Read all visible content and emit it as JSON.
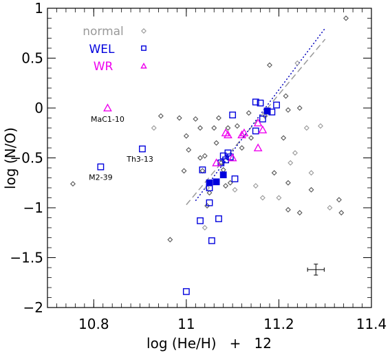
{
  "chart_data": {
    "type": "scatter",
    "title": "",
    "xlabel": "log (He/H)   +   12",
    "ylabel": "log (N/O)",
    "xlim": [
      10.7,
      11.4
    ],
    "ylim": [
      -2,
      1
    ],
    "xticks": [
      10.8,
      11,
      11.2,
      11.4
    ],
    "xtick_labels": [
      "10.8",
      "11",
      "11.2",
      "11.4"
    ],
    "yticks": [
      -2,
      -1.5,
      -1,
      -0.5,
      0,
      0.5,
      1
    ],
    "ytick_labels": [
      "−2",
      "−1.5",
      "−1",
      "−0.5",
      "0",
      "0.5",
      "1"
    ],
    "grid": false,
    "legend_position": "top-left",
    "legend": [
      {
        "label": "normal",
        "color": "#999999",
        "marker": "diamond"
      },
      {
        "label": "WEL",
        "color": "#0000dd",
        "marker": "square"
      },
      {
        "label": "WR",
        "color": "#ee00ee",
        "marker": "triangle"
      }
    ],
    "series": [
      {
        "name": "normal",
        "marker": "diamond",
        "points": [
          {
            "x": 10.755,
            "y": -0.76,
            "c": "#555555"
          },
          {
            "x": 10.945,
            "y": -0.08,
            "c": "#555555"
          },
          {
            "x": 10.93,
            "y": -0.2,
            "c": "#999999"
          },
          {
            "x": 10.985,
            "y": -0.1,
            "c": "#555555"
          },
          {
            "x": 10.995,
            "y": -0.63,
            "c": "#555555"
          },
          {
            "x": 11.0,
            "y": -0.28,
            "c": "#555555"
          },
          {
            "x": 11.005,
            "y": -0.42,
            "c": "#555555"
          },
          {
            "x": 11.02,
            "y": -0.11,
            "c": "#555555"
          },
          {
            "x": 11.03,
            "y": -0.2,
            "c": "#555555"
          },
          {
            "x": 11.03,
            "y": -0.5,
            "c": "#555555"
          },
          {
            "x": 11.035,
            "y": -0.63,
            "c": "#555555"
          },
          {
            "x": 11.04,
            "y": -0.48,
            "c": "#555555"
          },
          {
            "x": 11.045,
            "y": -0.8,
            "c": "#999999"
          },
          {
            "x": 11.05,
            "y": -0.85,
            "c": "#555555"
          },
          {
            "x": 11.06,
            "y": -0.2,
            "c": "#555555"
          },
          {
            "x": 11.065,
            "y": -0.35,
            "c": "#555555"
          },
          {
            "x": 11.07,
            "y": -0.1,
            "c": "#555555"
          },
          {
            "x": 11.075,
            "y": -0.55,
            "c": "#555555"
          },
          {
            "x": 11.08,
            "y": -0.62,
            "c": "#555555"
          },
          {
            "x": 11.085,
            "y": -0.78,
            "c": "#555555"
          },
          {
            "x": 11.09,
            "y": -0.2,
            "c": "#555555"
          },
          {
            "x": 11.095,
            "y": -0.75,
            "c": "#555555"
          },
          {
            "x": 11.105,
            "y": -0.82,
            "c": "#999999"
          },
          {
            "x": 11.11,
            "y": -0.18,
            "c": "#555555"
          },
          {
            "x": 11.12,
            "y": -0.4,
            "c": "#555555"
          },
          {
            "x": 11.135,
            "y": -0.05,
            "c": "#555555"
          },
          {
            "x": 11.14,
            "y": -0.3,
            "c": "#555555"
          },
          {
            "x": 11.15,
            "y": -0.78,
            "c": "#999999"
          },
          {
            "x": 11.165,
            "y": -0.9,
            "c": "#999999"
          },
          {
            "x": 11.17,
            "y": -0.08,
            "c": "#555555"
          },
          {
            "x": 11.18,
            "y": 0.43,
            "c": "#555555"
          },
          {
            "x": 11.19,
            "y": -0.65,
            "c": "#555555"
          },
          {
            "x": 11.2,
            "y": -0.9,
            "c": "#999999"
          },
          {
            "x": 11.21,
            "y": -0.3,
            "c": "#555555"
          },
          {
            "x": 11.215,
            "y": 0.12,
            "c": "#555555"
          },
          {
            "x": 11.22,
            "y": -0.02,
            "c": "#555555"
          },
          {
            "x": 11.22,
            "y": -0.75,
            "c": "#555555"
          },
          {
            "x": 11.225,
            "y": -0.55,
            "c": "#999999"
          },
          {
            "x": 11.235,
            "y": -0.45,
            "c": "#999999"
          },
          {
            "x": 11.24,
            "y": 0.45,
            "c": "#999999"
          },
          {
            "x": 11.245,
            "y": 0.0,
            "c": "#555555"
          },
          {
            "x": 11.26,
            "y": -0.2,
            "c": "#999999"
          },
          {
            "x": 11.27,
            "y": -0.65,
            "c": "#999999"
          },
          {
            "x": 11.27,
            "y": -0.82,
            "c": "#555555"
          },
          {
            "x": 11.29,
            "y": -0.18,
            "c": "#999999"
          },
          {
            "x": 11.31,
            "y": -1.0,
            "c": "#999999"
          },
          {
            "x": 11.33,
            "y": -0.92,
            "c": "#555555"
          },
          {
            "x": 11.335,
            "y": -1.05,
            "c": "#555555"
          },
          {
            "x": 11.345,
            "y": 0.9,
            "c": "#555555"
          },
          {
            "x": 10.965,
            "y": -1.32,
            "c": "#555555"
          },
          {
            "x": 11.04,
            "y": -1.2,
            "c": "#999999"
          },
          {
            "x": 11.045,
            "y": -0.98,
            "c": "#555555"
          },
          {
            "x": 11.22,
            "y": -1.02,
            "c": "#555555"
          },
          {
            "x": 11.245,
            "y": -1.05,
            "c": "#555555"
          }
        ]
      },
      {
        "name": "WEL",
        "marker": "square",
        "points": [
          {
            "x": 10.815,
            "y": -0.59,
            "filled": false
          },
          {
            "x": 10.905,
            "y": -0.41,
            "filled": false
          },
          {
            "x": 11.0,
            "y": -1.84,
            "filled": false
          },
          {
            "x": 11.03,
            "y": -1.13,
            "filled": false
          },
          {
            "x": 11.05,
            "y": -0.95,
            "filled": false
          },
          {
            "x": 11.055,
            "y": -1.33,
            "filled": false
          },
          {
            "x": 11.07,
            "y": -1.11,
            "filled": false
          },
          {
            "x": 11.035,
            "y": -0.62,
            "filled": false
          },
          {
            "x": 11.05,
            "y": -0.8,
            "filled": false
          },
          {
            "x": 11.075,
            "y": -0.55,
            "filled": false
          },
          {
            "x": 11.08,
            "y": -0.48,
            "filled": false
          },
          {
            "x": 11.085,
            "y": -0.52,
            "filled": false
          },
          {
            "x": 11.09,
            "y": -0.45,
            "filled": false
          },
          {
            "x": 11.095,
            "y": -0.49,
            "filled": false
          },
          {
            "x": 11.1,
            "y": -0.07,
            "filled": false
          },
          {
            "x": 11.105,
            "y": -0.71,
            "filled": false
          },
          {
            "x": 11.15,
            "y": 0.06,
            "filled": false
          },
          {
            "x": 11.15,
            "y": -0.23,
            "filled": false
          },
          {
            "x": 11.16,
            "y": 0.05,
            "filled": false
          },
          {
            "x": 11.165,
            "y": -0.11,
            "filled": false
          },
          {
            "x": 11.175,
            "y": -0.03,
            "filled": false
          },
          {
            "x": 11.185,
            "y": -0.04,
            "filled": false
          },
          {
            "x": 11.195,
            "y": 0.03,
            "filled": false
          },
          {
            "x": 11.05,
            "y": -0.75,
            "filled": true
          },
          {
            "x": 11.065,
            "y": -0.74,
            "filled": true
          },
          {
            "x": 11.08,
            "y": -0.67,
            "filled": true
          },
          {
            "x": 11.175,
            "y": -0.03,
            "filled": true
          }
        ]
      },
      {
        "name": "WR",
        "marker": "triangle",
        "points": [
          {
            "x": 10.83,
            "y": 0.0
          },
          {
            "x": 11.065,
            "y": -0.55
          },
          {
            "x": 11.085,
            "y": -0.25
          },
          {
            "x": 11.09,
            "y": -0.27
          },
          {
            "x": 11.1,
            "y": -0.5
          },
          {
            "x": 11.12,
            "y": -0.27
          },
          {
            "x": 11.125,
            "y": -0.25
          },
          {
            "x": 11.155,
            "y": -0.4
          },
          {
            "x": 11.155,
            "y": -0.15
          },
          {
            "x": 11.165,
            "y": -0.22
          }
        ]
      }
    ],
    "fit_lines": [
      {
        "style": "dashed",
        "color": "#999999",
        "x": [
          11.0,
          11.3
        ],
        "y": [
          -0.97,
          0.69
        ]
      },
      {
        "style": "dotted",
        "color": "#0000bb",
        "x": [
          11.02,
          11.3
        ],
        "y": [
          -0.93,
          0.8
        ]
      }
    ],
    "annotations": [
      {
        "text": "MaC1-10",
        "x": 10.83,
        "y": -0.07
      },
      {
        "text": "Th3-13",
        "x": 10.9,
        "y": -0.47
      },
      {
        "text": "M2-39",
        "x": 10.815,
        "y": -0.65
      }
    ],
    "error_bar": {
      "x": 11.28,
      "y": -1.62,
      "dx": 0.018,
      "dy": 0.055
    }
  }
}
